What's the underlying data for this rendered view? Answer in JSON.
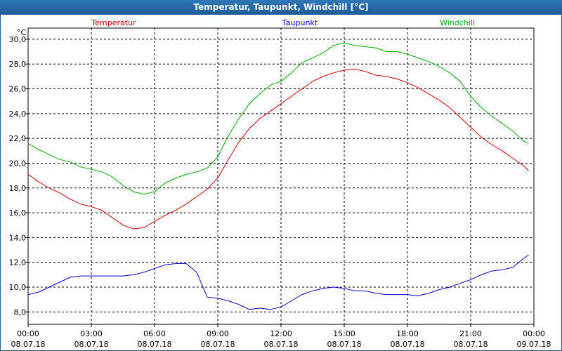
{
  "window": {
    "title": "Temperatur, Taupunkt, Windchill [°C]"
  },
  "chart_data": {
    "type": "line",
    "title": "Temperatur, Taupunkt, Windchill [°C]",
    "ylabel": "°C",
    "ylim": [
      7.0,
      30.9
    ],
    "y_ticks": [
      "8,0",
      "10,0",
      "12,0",
      "14,0",
      "16,0",
      "18,0",
      "20,0",
      "22,0",
      "24,0",
      "26,0",
      "28,0",
      "30,0"
    ],
    "y_tick_values": [
      8,
      10,
      12,
      14,
      16,
      18,
      20,
      22,
      24,
      26,
      28,
      30
    ],
    "x_range_hours": [
      0,
      24
    ],
    "x_ticks": [
      {
        "time": "00:00",
        "date": "08.07.18"
      },
      {
        "time": "03:00",
        "date": "08.07.18"
      },
      {
        "time": "06:00",
        "date": "08.07.18"
      },
      {
        "time": "09:00",
        "date": "08.07.18"
      },
      {
        "time": "12:00",
        "date": "08.07.18"
      },
      {
        "time": "15:00",
        "date": "08.07.18"
      },
      {
        "time": "18:00",
        "date": "08.07.18"
      },
      {
        "time": "21:00",
        "date": "08.07.18"
      },
      {
        "time": "00:00",
        "date": "09.07.18"
      }
    ],
    "grid": true,
    "legend_position": "top",
    "x": [
      0,
      0.5,
      1,
      1.5,
      2,
      2.5,
      3,
      3.5,
      4,
      4.5,
      5,
      5.5,
      6,
      6.5,
      7,
      7.5,
      8,
      8.5,
      9,
      9.5,
      10,
      10.5,
      11,
      11.5,
      12,
      12.5,
      13,
      13.5,
      14,
      14.5,
      15,
      15.5,
      16,
      16.5,
      17,
      17.5,
      18,
      18.5,
      19,
      19.5,
      20,
      20.5,
      21,
      21.5,
      22,
      22.5,
      23,
      23.5,
      23.75
    ],
    "series": [
      {
        "name": "Temperatur",
        "color": "#cc0000",
        "values": [
          19.1,
          18.5,
          18.0,
          17.6,
          17.1,
          16.7,
          16.5,
          16.2,
          15.6,
          15.0,
          14.7,
          14.8,
          15.3,
          15.8,
          16.2,
          16.7,
          17.3,
          17.9,
          18.8,
          20.3,
          21.7,
          22.8,
          23.6,
          24.2,
          24.8,
          25.4,
          26.0,
          26.6,
          27.0,
          27.3,
          27.5,
          27.6,
          27.4,
          27.1,
          27.0,
          26.8,
          26.5,
          26.1,
          25.6,
          25.1,
          24.5,
          23.7,
          22.9,
          22.1,
          21.5,
          21.0,
          20.4,
          19.8,
          19.4
        ]
      },
      {
        "name": "Taupunkt",
        "color": "#0000cc",
        "values": [
          9.4,
          9.6,
          10.0,
          10.4,
          10.8,
          10.9,
          10.9,
          10.9,
          10.9,
          10.9,
          11.0,
          11.2,
          11.5,
          11.8,
          11.9,
          11.9,
          11.2,
          9.2,
          9.1,
          8.9,
          8.6,
          8.2,
          8.3,
          8.2,
          8.4,
          8.9,
          9.4,
          9.7,
          9.9,
          10.0,
          9.9,
          9.7,
          9.7,
          9.5,
          9.4,
          9.4,
          9.4,
          9.3,
          9.5,
          9.8,
          10.0,
          10.3,
          10.6,
          11.0,
          11.3,
          11.4,
          11.6,
          12.3,
          12.6
        ]
      },
      {
        "name": "Windchill",
        "color": "#00aa00",
        "values": [
          21.6,
          21.1,
          20.7,
          20.3,
          20.1,
          19.7,
          19.5,
          19.3,
          18.9,
          18.2,
          17.7,
          17.5,
          17.7,
          18.4,
          18.8,
          19.1,
          19.3,
          19.6,
          20.5,
          22.2,
          23.6,
          24.8,
          25.6,
          26.3,
          26.6,
          27.3,
          28.1,
          28.5,
          28.9,
          29.5,
          29.7,
          29.5,
          29.4,
          29.3,
          29.0,
          29.0,
          28.8,
          28.5,
          28.2,
          27.8,
          27.3,
          26.6,
          25.4,
          24.5,
          23.8,
          23.2,
          22.6,
          21.8,
          21.6
        ]
      }
    ]
  }
}
